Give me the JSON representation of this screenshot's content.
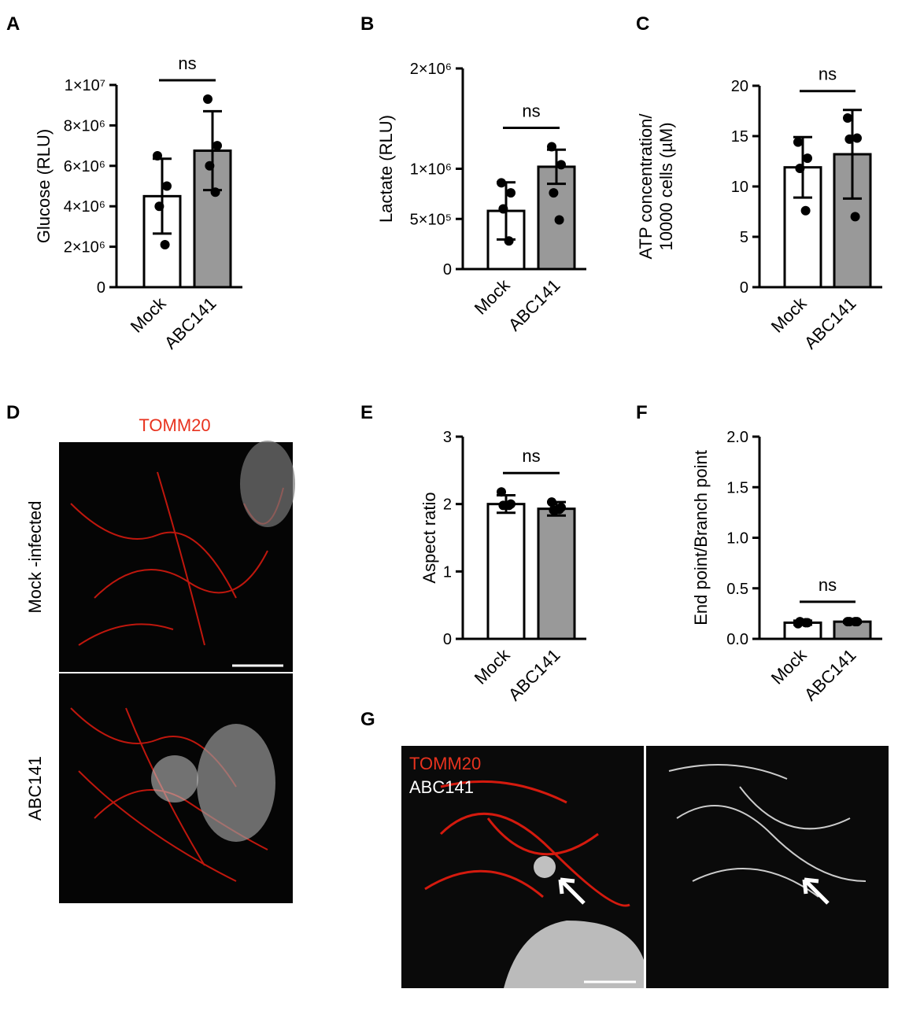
{
  "figure": {
    "panel_labels": [
      "A",
      "B",
      "C",
      "D",
      "E",
      "F",
      "G"
    ],
    "panel_d": {
      "title": "TOMM20",
      "rows": [
        "Mock -infected",
        "ABC141"
      ]
    },
    "panel_g": {
      "labels": [
        "TOMM20",
        "ABC141"
      ]
    }
  },
  "chart_data": [
    {
      "type": "bar",
      "ylabel": "Glucose (RLU)",
      "categories": [
        "Mock",
        "ABC141"
      ],
      "colors": [
        "#ffffff",
        "#999999"
      ],
      "values": [
        4500000,
        6750000
      ],
      "errors": [
        1850000,
        1950000
      ],
      "points": [
        [
          6500000,
          5000000,
          4000000,
          2100000
        ],
        [
          9300000,
          7000000,
          6000000,
          4700000
        ]
      ],
      "annotation": "ns",
      "ylim": [
        0,
        10000000
      ],
      "yticks": [
        0,
        {
          "value": 2000000,
          "label": "2×10⁶"
        },
        {
          "value": 4000000,
          "label": "4×10⁶"
        },
        {
          "value": 6000000,
          "label": "6×10⁶"
        },
        {
          "value": 8000000,
          "label": "8×10⁶"
        },
        {
          "value": 10000000,
          "label": "1×10⁷"
        }
      ]
    },
    {
      "type": "bar",
      "ylabel": "Lactate (RLU)",
      "categories": [
        "Mock",
        "ABC141"
      ],
      "colors": [
        "#ffffff",
        "#999999"
      ],
      "values": [
        580000,
        1020000
      ],
      "errors": [
        285000,
        170000
      ],
      "points": [
        [
          860000,
          760000,
          600000,
          280000
        ],
        [
          1220000,
          1040000,
          760000,
          490000
        ]
      ],
      "annotation": "ns",
      "ylim": [
        0,
        2000000
      ],
      "yticks": [
        0,
        {
          "value": 500000,
          "label": "5×10⁵"
        },
        {
          "value": 1000000,
          "label": "1×10⁶"
        },
        {
          "value": 2000000,
          "label": "2×10⁶"
        }
      ]
    },
    {
      "type": "bar",
      "ylabel": [
        "ATP concentration/",
        "10000 cells (µM)"
      ],
      "categories": [
        "Mock",
        "ABC141"
      ],
      "colors": [
        "#ffffff",
        "#999999"
      ],
      "values": [
        11.9,
        13.2
      ],
      "errors": [
        3.0,
        4.4
      ],
      "points": [
        [
          14.4,
          12.8,
          11.8,
          7.6
        ],
        [
          16.8,
          14.8,
          14.7,
          7.0
        ]
      ],
      "annotation": "ns",
      "ylim": [
        0,
        20
      ],
      "yticks": [
        0,
        5,
        10,
        15,
        20
      ]
    },
    {
      "type": "bar",
      "ylabel": "Aspect ratio",
      "categories": [
        "Mock",
        "ABC141"
      ],
      "colors": [
        "#ffffff",
        "#999999"
      ],
      "values": [
        2.0,
        1.93
      ],
      "errors": [
        0.13,
        0.1
      ],
      "points": [
        [
          2.18,
          2.0,
          1.98,
          1.98
        ],
        [
          2.03,
          1.95,
          1.91,
          1.92
        ]
      ],
      "annotation": "ns",
      "ylim": [
        0,
        3
      ],
      "yticks": [
        0,
        1,
        2,
        3
      ]
    },
    {
      "type": "bar",
      "ylabel": "End point/Branch point",
      "categories": [
        "Mock",
        "ABC141"
      ],
      "colors": [
        "#ffffff",
        "#999999"
      ],
      "values": [
        0.16,
        0.17
      ],
      "errors": [
        0.02,
        0.01
      ],
      "points": [
        [
          0.15,
          0.16,
          0.17,
          0.16
        ],
        [
          0.17,
          0.17,
          0.17,
          0.17
        ]
      ],
      "annotation": "ns",
      "ylim": [
        0,
        2
      ],
      "yticks": [
        {
          "value": 0,
          "label": "0.0"
        },
        0.5,
        {
          "value": 1,
          "label": "1.0"
        },
        1.5,
        {
          "value": 2,
          "label": "2.0"
        }
      ]
    }
  ]
}
